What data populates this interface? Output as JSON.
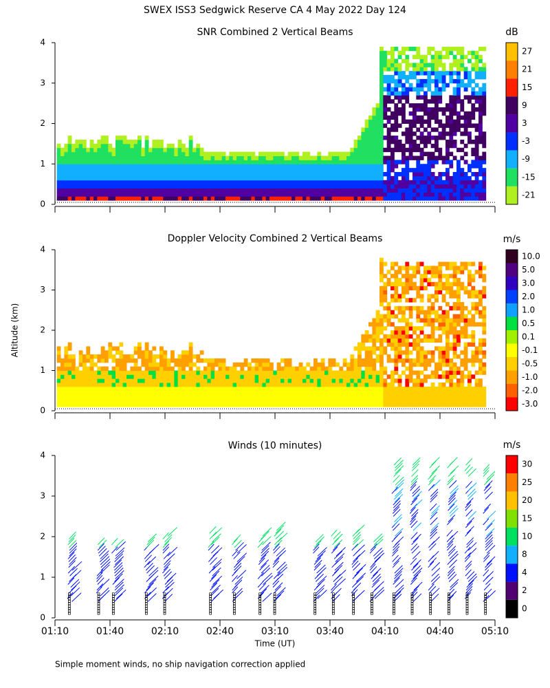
{
  "title": "SWEX ISS3 Sedgwick Reserve CA   4 May 2022 Day 124",
  "y_label": "Altitude (km)",
  "footnote": "Simple moment winds, no ship navigation correction applied",
  "chart_data": [
    {
      "type": "heatmap",
      "title": "SNR Combined 2 Vertical Beams",
      "ylim": [
        0,
        4
      ],
      "yticks": [
        0,
        1,
        2,
        3,
        4
      ],
      "xlim": [
        70,
        310
      ],
      "xticks": [
        70,
        100,
        130,
        160,
        190,
        220,
        250,
        280,
        310
      ],
      "colorbar": {
        "unit": "dB",
        "ticks": [
          27,
          21,
          15,
          9,
          3,
          -3,
          -9,
          -15,
          -21
        ],
        "colors": [
          "#ffc000",
          "#ff8000",
          "#ff2000",
          "#400060",
          "#5000a0",
          "#0030ff",
          "#10b0ff",
          "#20e060",
          "#b0f020"
        ]
      }
    },
    {
      "type": "heatmap",
      "title": "Doppler Velocity Combined 2 Vertical Beams",
      "ylim": [
        0,
        4
      ],
      "yticks": [
        0,
        1,
        2,
        3,
        4
      ],
      "xlim": [
        70,
        310
      ],
      "xticks": [
        70,
        100,
        130,
        160,
        190,
        220,
        250,
        280,
        310
      ],
      "colorbar": {
        "unit": "m/s",
        "ticks": [
          {
            "value": 10,
            "label": "10.0"
          },
          {
            "value": 5,
            "label": "5.0"
          },
          {
            "value": 3,
            "label": "3.0"
          },
          {
            "value": 2,
            "label": "2.0"
          },
          {
            "value": 1,
            "label": "1.0"
          },
          0.5,
          0.1,
          -0.1,
          -0.5,
          {
            "value": -1,
            "label": "-1.0"
          },
          {
            "value": -2,
            "label": "-2.0"
          },
          {
            "value": -3,
            "label": "-3.0"
          }
        ],
        "colors": [
          "#300020",
          "#500080",
          "#3000c0",
          "#0040ff",
          "#10a0ff",
          "#00e040",
          "#a0f000",
          "#ffff00",
          "#ffd000",
          "#ffa000",
          "#ff6000",
          "#ff0000"
        ]
      }
    },
    {
      "type": "barbs",
      "title": "Winds (10 minutes)",
      "x_label": "Time (UT)",
      "ylim": [
        0,
        4
      ],
      "yticks": [
        0,
        1,
        2,
        3,
        4
      ],
      "xlim": [
        70,
        310
      ],
      "xticks": [
        {
          "value": 70,
          "label": "01:10"
        },
        {
          "value": 100,
          "label": "01:40"
        },
        {
          "value": 130,
          "label": "02:10"
        },
        {
          "value": 160,
          "label": "02:40"
        },
        {
          "value": 190,
          "label": "03:10"
        },
        {
          "value": 220,
          "label": "03:40"
        },
        {
          "value": 250,
          "label": "04:10"
        },
        {
          "value": 280,
          "label": "04:40"
        },
        {
          "value": 310,
          "label": "05:10"
        }
      ],
      "colorbar": {
        "unit": "m/s",
        "ticks": [
          30,
          25,
          20,
          15,
          10,
          8,
          4,
          2,
          0
        ],
        "colors": [
          "#ff0000",
          "#ff8000",
          "#ffc000",
          "#80e000",
          "#00e060",
          "#10b0ff",
          "#0010ff",
          "#500070",
          "#000000"
        ]
      }
    }
  ]
}
